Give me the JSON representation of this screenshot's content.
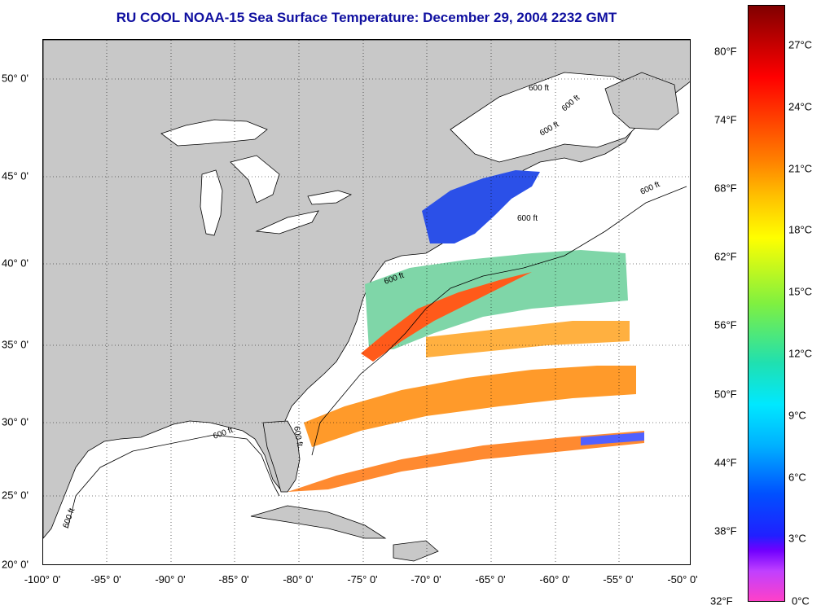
{
  "title": "RU COOL  NOAA-15  Sea Surface Temperature:  December 29, 2004 2232 GMT",
  "x_ticks": [
    "-100° 0'",
    "-95° 0'",
    "-90° 0'",
    "-85° 0'",
    "-80° 0'",
    "-75° 0'",
    "-70° 0'",
    "-65° 0'",
    "-60° 0'",
    "-55° 0'",
    "-50° 0'"
  ],
  "y_ticks": [
    "50° 0'",
    "45° 0'",
    "40° 0'",
    "35° 0'",
    "30° 0'",
    "25° 0'",
    "20° 0'"
  ],
  "colorbar": {
    "fahrenheit": [
      "80°F",
      "74°F",
      "68°F",
      "62°F",
      "56°F",
      "50°F",
      "44°F",
      "38°F",
      "32°F"
    ],
    "celsius": [
      "27°C",
      "24°C",
      "21°C",
      "18°C",
      "15°C",
      "12°C",
      "9°C",
      "6°C",
      "3°C",
      "0°C"
    ]
  },
  "contour_labels": {
    "c1": "600 ft",
    "c2": "600 ft",
    "c3": "600 ft",
    "c4": "600 ft",
    "c5": "600 ft",
    "c6": "600 ft",
    "c7": "600 ft",
    "c8": "600 ft",
    "c9": "600 ft"
  },
  "colors": {
    "land": "#c8c8c8",
    "ocean": "#ffffff",
    "title": "#1010a0"
  }
}
